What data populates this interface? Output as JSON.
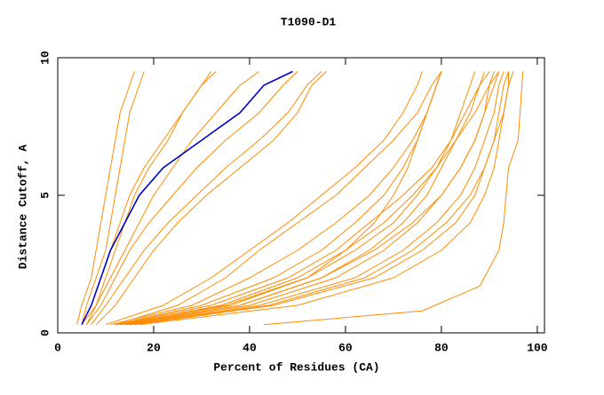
{
  "chart_data": {
    "type": "line",
    "title": "T1090-D1",
    "x_label": "Percent of Residues (CA)",
    "y_label": "Distance Cutoff, A",
    "xlim": [
      0,
      101.5
    ],
    "ylim": [
      0,
      10
    ],
    "xticks": [
      0,
      20,
      40,
      60,
      80,
      100
    ],
    "yticks": [
      0,
      5,
      10
    ],
    "series": [
      {
        "color": "#ff8c00",
        "x": [
          4,
          5,
          7,
          8,
          9,
          10,
          11,
          12,
          13,
          15,
          16
        ],
        "values": [
          0.3,
          1,
          2,
          3,
          4,
          5,
          6,
          7,
          8,
          9,
          9.5
        ]
      },
      {
        "color": "#ff8c00",
        "x": [
          5,
          7,
          9,
          11,
          13,
          15,
          18,
          22,
          26,
          30,
          33
        ],
        "values": [
          0.3,
          1,
          2,
          3,
          4,
          5,
          6,
          7,
          8,
          9,
          9.5
        ]
      },
      {
        "color": "#ff8c00",
        "x": [
          6,
          8,
          11,
          14,
          17,
          20,
          24,
          28,
          33,
          38,
          42
        ],
        "values": [
          0.3,
          1,
          2,
          3,
          4,
          5,
          6,
          7,
          8,
          9,
          9.5
        ]
      },
      {
        "color": "#ff8c00",
        "x": [
          5,
          6,
          8,
          10,
          11,
          12,
          13,
          14,
          15,
          17,
          18
        ],
        "values": [
          0.3,
          1,
          2,
          3,
          4,
          5,
          6,
          7,
          8,
          9,
          9.5
        ]
      },
      {
        "color": "#ff8c00",
        "x": [
          6,
          9,
          12,
          15,
          19,
          24,
          29,
          35,
          42,
          47,
          50
        ],
        "values": [
          0.3,
          1,
          2,
          3,
          4,
          5,
          6,
          7,
          8,
          9,
          9.5
        ]
      },
      {
        "color": "#ff8c00",
        "x": [
          7,
          10,
          14,
          18,
          23,
          29,
          35,
          42,
          48,
          52,
          55
        ],
        "values": [
          0.3,
          1,
          2,
          3,
          4,
          5,
          6,
          7,
          8,
          9,
          9.5
        ]
      },
      {
        "color": "#ff8c00",
        "x": [
          5,
          8,
          10,
          12,
          14,
          16,
          19,
          23,
          26,
          30,
          32
        ],
        "values": [
          0.3,
          1,
          2,
          3,
          4,
          5,
          6,
          7,
          8,
          9,
          9.5
        ]
      },
      {
        "color": "#ff8c00",
        "x": [
          8,
          12,
          16,
          20,
          25,
          31,
          38,
          45,
          50,
          53,
          56
        ],
        "values": [
          0.3,
          1,
          2,
          3,
          4,
          5,
          6,
          7,
          8,
          9,
          9.5
        ]
      },
      {
        "color": "#ff8c00",
        "x": [
          12,
          30,
          45,
          55,
          62,
          68,
          72,
          75,
          77,
          79,
          80
        ],
        "values": [
          0.3,
          1,
          2,
          3,
          4,
          5,
          6,
          7,
          8,
          9,
          9.5
        ]
      },
      {
        "color": "#ff8c00",
        "x": [
          13,
          35,
          52,
          62,
          70,
          75,
          79,
          82,
          84,
          86,
          87
        ],
        "values": [
          0.3,
          1,
          2,
          3,
          4,
          5,
          6,
          7,
          8,
          9,
          9.5
        ]
      },
      {
        "color": "#ff8c00",
        "x": [
          14,
          40,
          58,
          68,
          75,
          80,
          84,
          87,
          89,
          90,
          91
        ],
        "values": [
          0.3,
          1,
          2,
          3,
          4,
          5,
          6,
          7,
          8,
          9,
          9.5
        ]
      },
      {
        "color": "#ff8c00",
        "x": [
          12,
          32,
          48,
          58,
          65,
          72,
          78,
          82,
          85,
          88,
          90
        ],
        "values": [
          0.3,
          1,
          2,
          3,
          4,
          5,
          6,
          7,
          8,
          9,
          9.5
        ]
      },
      {
        "color": "#ff8c00",
        "x": [
          15,
          42,
          62,
          72,
          79,
          84,
          87,
          89,
          91,
          92,
          93
        ],
        "values": [
          0.3,
          1,
          2,
          3,
          4,
          5,
          6,
          7,
          8,
          9,
          9.5
        ]
      },
      {
        "color": "#ff8c00",
        "x": [
          13,
          38,
          55,
          66,
          74,
          80,
          84,
          87,
          89,
          91,
          92
        ],
        "values": [
          0.3,
          1,
          2,
          3,
          4,
          5,
          6,
          7,
          8,
          9,
          9.5
        ]
      },
      {
        "color": "#ff8c00",
        "x": [
          11,
          28,
          40,
          50,
          58,
          65,
          70,
          74,
          77,
          79,
          80
        ],
        "values": [
          0.3,
          1,
          2,
          3,
          4,
          5,
          6,
          7,
          8,
          9,
          9.5
        ]
      },
      {
        "color": "#ff8c00",
        "x": [
          16,
          45,
          66,
          76,
          83,
          87,
          89,
          91,
          92,
          93,
          94
        ],
        "values": [
          0.3,
          1,
          2,
          3,
          4,
          5,
          6,
          7,
          8,
          9,
          9.5
        ]
      },
      {
        "color": "#ff8c00",
        "x": [
          12,
          25,
          35,
          42,
          50,
          58,
          64,
          70,
          75,
          78,
          80
        ],
        "values": [
          0.3,
          1,
          2,
          3,
          4,
          5,
          6,
          7,
          8,
          9,
          9.5
        ]
      },
      {
        "color": "#ff8c00",
        "x": [
          14,
          38,
          55,
          65,
          72,
          77,
          80,
          83,
          86,
          88,
          89
        ],
        "values": [
          0.3,
          1,
          2,
          3,
          4,
          5,
          6,
          7,
          8,
          9,
          9.5
        ]
      },
      {
        "color": "#ff8c00",
        "x": [
          10,
          22,
          32,
          40,
          48,
          55,
          62,
          68,
          72,
          75,
          76
        ],
        "values": [
          0.3,
          1,
          2,
          3,
          4,
          5,
          6,
          7,
          8,
          9,
          9.5
        ]
      },
      {
        "color": "#ff8c00",
        "x": [
          15,
          44,
          64,
          74,
          81,
          86,
          89,
          91,
          93,
          94,
          95
        ],
        "values": [
          0.3,
          1,
          2,
          3,
          4,
          5,
          6,
          7,
          8,
          9,
          9.5
        ]
      },
      {
        "color": "#ff8c00",
        "x": [
          13,
          34,
          50,
          60,
          68,
          74,
          79,
          83,
          87,
          90,
          92
        ],
        "values": [
          0.3,
          1,
          2,
          3,
          4,
          5,
          6,
          7,
          8,
          9,
          9.5
        ]
      },
      {
        "color": "#ff8c00",
        "x": [
          17,
          50,
          70,
          80,
          86,
          89,
          91,
          92,
          93,
          94,
          94
        ],
        "values": [
          0.3,
          1,
          2,
          3,
          4,
          5,
          6,
          7,
          8,
          9,
          9.5
        ]
      },
      {
        "color": "#ff8c00",
        "x": [
          12,
          36,
          52,
          60,
          66,
          70,
          73,
          75,
          77,
          79,
          80
        ],
        "values": [
          0.3,
          1,
          2,
          3,
          4,
          5,
          6,
          7,
          8,
          9,
          9.5
        ]
      },
      {
        "color": "#ff8c00",
        "x": [
          43,
          76,
          88,
          92,
          93,
          94,
          96,
          97
        ],
        "values": [
          0.3,
          0.8,
          1.7,
          3,
          4,
          6,
          7,
          9.5
        ]
      },
      {
        "color": "#0000cd",
        "x": [
          5,
          7,
          9,
          11,
          14,
          17,
          22,
          30,
          38,
          43,
          49
        ],
        "values": [
          0.3,
          1,
          2,
          3,
          4,
          5,
          6,
          7,
          8,
          9,
          9.5
        ]
      }
    ]
  }
}
